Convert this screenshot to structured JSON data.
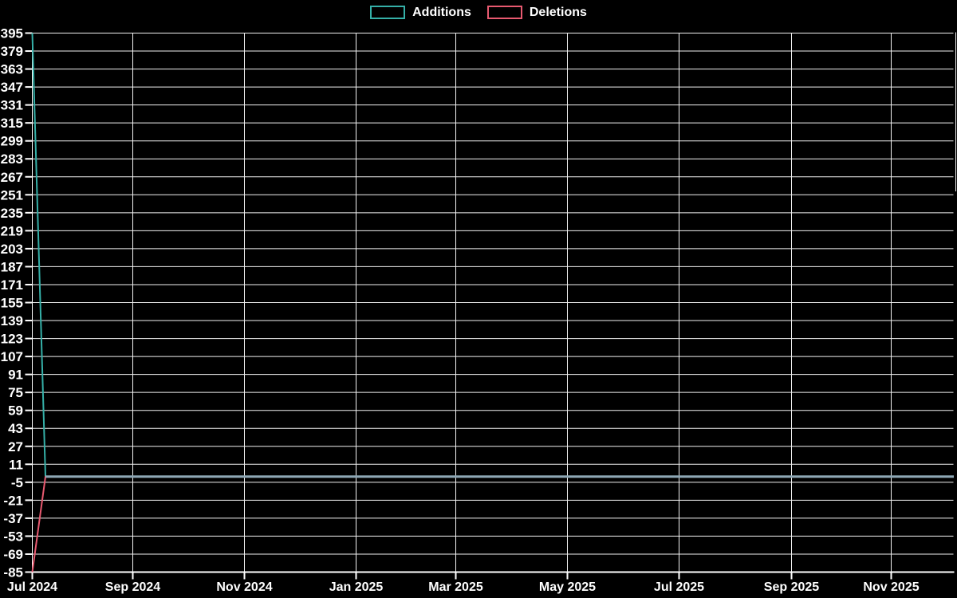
{
  "page": {
    "background": "#000000",
    "text_color": "#ffffff"
  },
  "legend": {
    "position": "top-center",
    "items": [
      {
        "label": "Additions",
        "color": "#35b0a8"
      },
      {
        "label": "Deletions",
        "color": "#e85a70"
      }
    ]
  },
  "chart_data": {
    "type": "line",
    "title": "",
    "xlabel": "",
    "ylabel": "",
    "background": "#000000",
    "grid": true,
    "gridline_color": "#f2f2f2",
    "axis_color": "#ffffff",
    "text_color": "#ffffff",
    "legend_position": "top-center",
    "x_axis": {
      "unit": "weeks since start",
      "tick_labels": [
        "Jul 2024",
        "Sep 2024",
        "Nov 2024",
        "Jan 2025",
        "Mar 2025",
        "May 2025",
        "Jul 2025",
        "Sep 2025",
        "Nov 2025"
      ],
      "total_weeks": 70
    },
    "y_axis": {
      "min": -85,
      "max": 395,
      "step": 16,
      "ticks": [
        395,
        379,
        363,
        347,
        331,
        315,
        299,
        283,
        267,
        251,
        235,
        219,
        203,
        187,
        171,
        155,
        139,
        123,
        107,
        91,
        75,
        59,
        43,
        27,
        11,
        -5,
        -21,
        -37,
        -53,
        -69,
        -85
      ]
    },
    "series": [
      {
        "name": "Additions",
        "color": "#35b0a8",
        "points": [
          [
            0,
            395
          ],
          [
            1,
            0
          ],
          [
            70,
            0
          ]
        ],
        "description": "395 additions in first week of Jul 2024, then 0 through Nov 2025"
      },
      {
        "name": "Deletions",
        "color": "#e85a70",
        "points": [
          [
            0,
            -85
          ],
          [
            1,
            0
          ],
          [
            70,
            0
          ]
        ],
        "description": "-85 deletions in first week of Jul 2024, then 0 through Nov 2025"
      }
    ],
    "overlap_line_color": "#8ea7b5",
    "zero_overlap_note": "both series sit at 0 after week 1; overlapping strokes render as a gray-blue horizontal line"
  }
}
